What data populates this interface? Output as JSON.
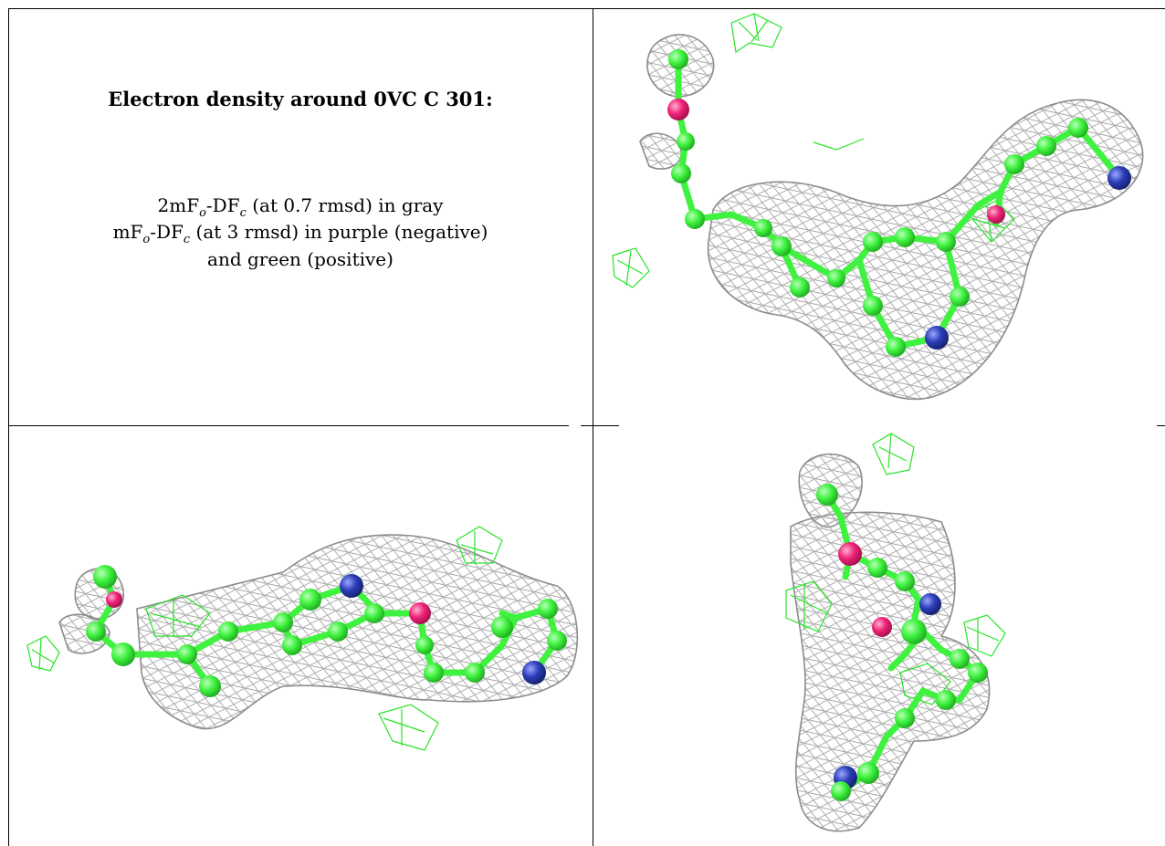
{
  "caption": {
    "title": "Electron density around 0VC C 301:",
    "line1": {
      "a": "2mF",
      "sub_o": "o",
      "b": "-DF",
      "sub_c": "c",
      "c": " (at 0.7 rmsd) in gray"
    },
    "line2": {
      "a": "mF",
      "sub_o": "o",
      "b": "-DF",
      "sub_c": "c",
      "c": " (at 3 rmsd) in purple (negative)"
    },
    "line3": "and green (positive)"
  },
  "colors": {
    "carbon": "#3ff23f",
    "oxygen": "#ee2277",
    "nitrogen": "#2b3db8",
    "map_2fofc": "#9a9a9a",
    "map_fofc_positive": "#27e427"
  }
}
